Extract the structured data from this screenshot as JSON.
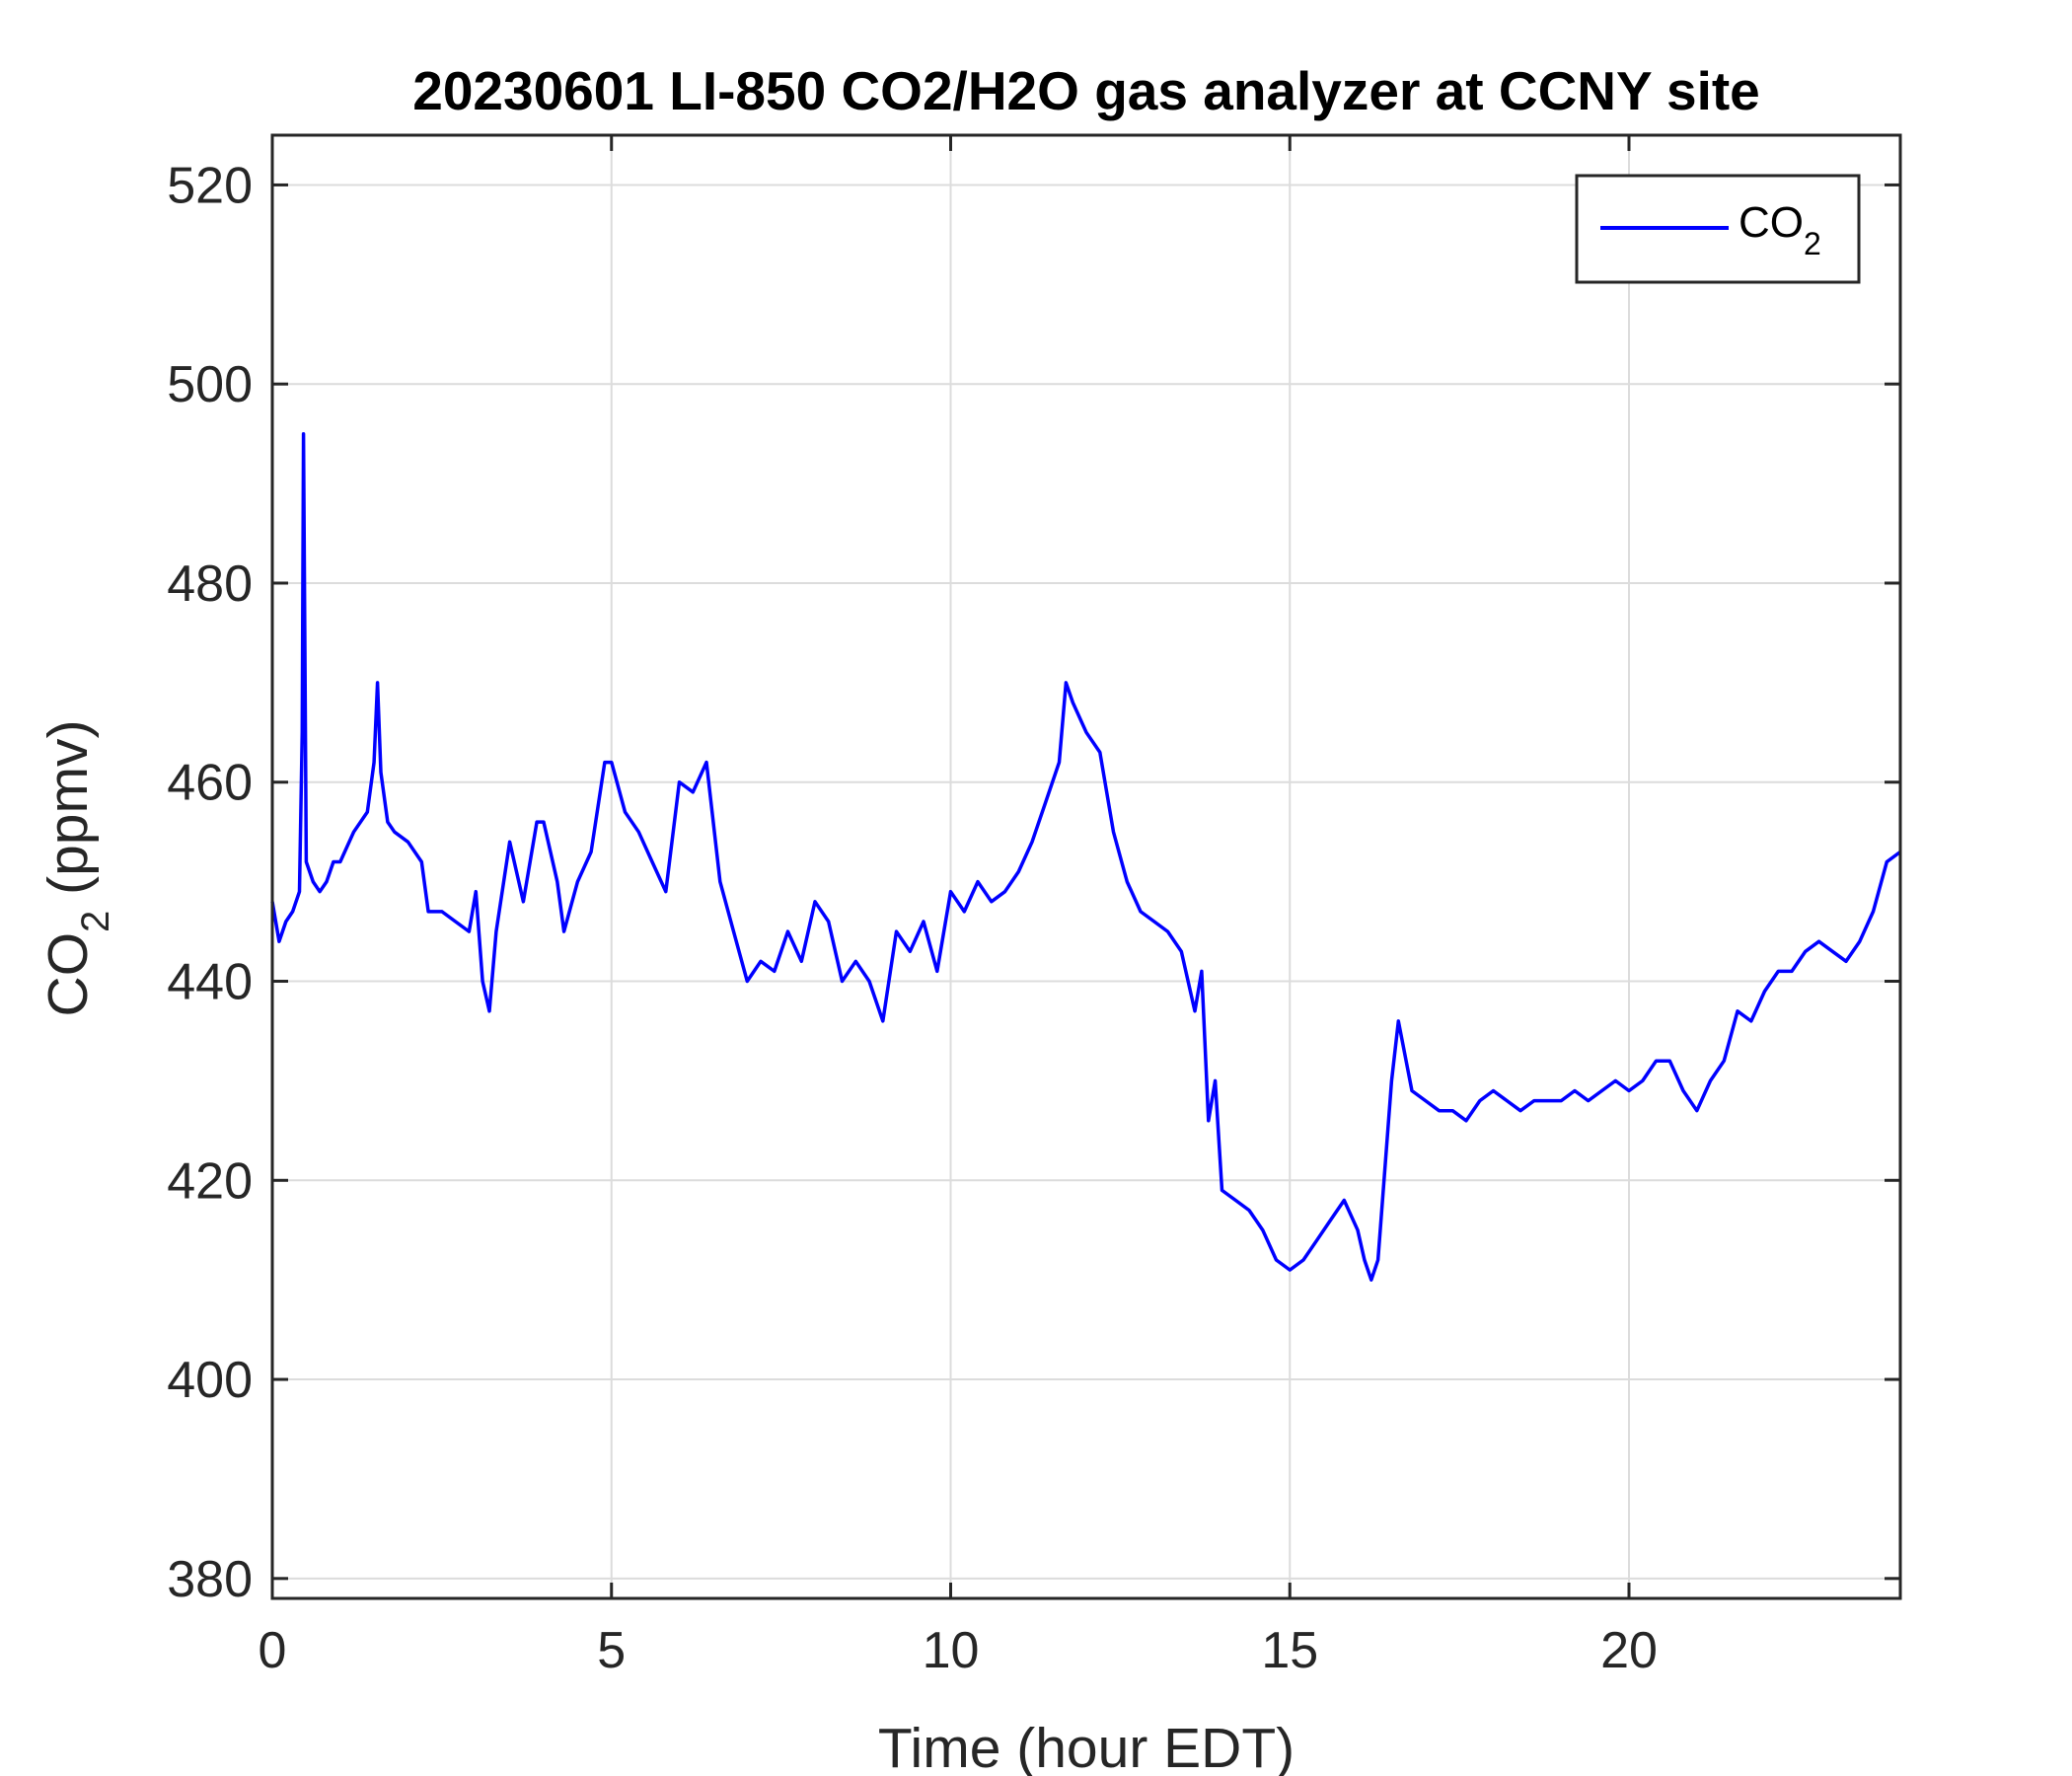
{
  "chart_data": {
    "type": "line",
    "title": "20230601 LI-850 CO2/H2O gas analyzer at CCNY site",
    "xlabel": "Time (hour EDT)",
    "ylabel": {
      "main": "CO",
      "sub": "2",
      "unit": " (ppmv)"
    },
    "xlim": [
      0,
      24
    ],
    "ylim": [
      378,
      525
    ],
    "xticks": [
      0,
      5,
      10,
      15,
      20
    ],
    "yticks": [
      380,
      400,
      420,
      440,
      460,
      480,
      500,
      520
    ],
    "grid": true,
    "legend_position": "top-right",
    "series": [
      {
        "name": "CO2",
        "legend_label": {
          "main": "CO",
          "sub": "2"
        },
        "color": "#0000ff",
        "x": [
          0.0,
          0.1,
          0.2,
          0.3,
          0.4,
          0.44,
          0.46,
          0.5,
          0.6,
          0.7,
          0.8,
          0.9,
          1.0,
          1.2,
          1.4,
          1.5,
          1.55,
          1.6,
          1.7,
          1.8,
          2.0,
          2.2,
          2.3,
          2.5,
          2.7,
          2.9,
          3.0,
          3.1,
          3.2,
          3.3,
          3.5,
          3.7,
          3.9,
          4.0,
          4.2,
          4.3,
          4.5,
          4.7,
          4.9,
          5.0,
          5.2,
          5.4,
          5.6,
          5.8,
          6.0,
          6.2,
          6.4,
          6.6,
          6.8,
          7.0,
          7.2,
          7.4,
          7.6,
          7.8,
          8.0,
          8.2,
          8.4,
          8.6,
          8.8,
          9.0,
          9.2,
          9.4,
          9.6,
          9.8,
          10.0,
          10.2,
          10.4,
          10.6,
          10.8,
          11.0,
          11.2,
          11.4,
          11.6,
          11.7,
          11.8,
          12.0,
          12.2,
          12.4,
          12.6,
          12.8,
          13.0,
          13.2,
          13.4,
          13.6,
          13.7,
          13.8,
          13.9,
          14.0,
          14.2,
          14.4,
          14.6,
          14.8,
          15.0,
          15.2,
          15.4,
          15.6,
          15.8,
          16.0,
          16.1,
          16.2,
          16.3,
          16.5,
          16.6,
          16.8,
          17.0,
          17.2,
          17.4,
          17.6,
          17.8,
          18.0,
          18.2,
          18.4,
          18.6,
          18.8,
          19.0,
          19.2,
          19.4,
          19.6,
          19.8,
          20.0,
          20.2,
          20.4,
          20.6,
          20.8,
          21.0,
          21.2,
          21.4,
          21.6,
          21.8,
          22.0,
          22.2,
          22.4,
          22.6,
          22.8,
          23.0,
          23.2,
          23.4,
          23.6,
          23.8,
          24.0
        ],
        "values": [
          448,
          444,
          446,
          447,
          449,
          465,
          495,
          452,
          450,
          449,
          450,
          452,
          452,
          455,
          457,
          462,
          470,
          461,
          456,
          455,
          454,
          452,
          447,
          447,
          446,
          445,
          449,
          440,
          437,
          445,
          454,
          448,
          456,
          456,
          450,
          445,
          450,
          453,
          462,
          462,
          457,
          455,
          452,
          449,
          460,
          459,
          462,
          450,
          445,
          440,
          442,
          441,
          445,
          442,
          448,
          446,
          440,
          442,
          440,
          436,
          445,
          443,
          446,
          441,
          449,
          447,
          450,
          448,
          449,
          451,
          454,
          458,
          462,
          470,
          468,
          465,
          463,
          455,
          450,
          447,
          446,
          445,
          443,
          437,
          441,
          426,
          430,
          419,
          418,
          417,
          415,
          412,
          411,
          412,
          414,
          416,
          418,
          415,
          412,
          410,
          412,
          430,
          436,
          429,
          428,
          427,
          427,
          426,
          428,
          429,
          428,
          427,
          428,
          428,
          428,
          429,
          428,
          429,
          430,
          429,
          430,
          432,
          432,
          429,
          427,
          430,
          432,
          437,
          436,
          439,
          441,
          441,
          443,
          444,
          443,
          442,
          444,
          447,
          452,
          453
        ]
      }
    ]
  }
}
